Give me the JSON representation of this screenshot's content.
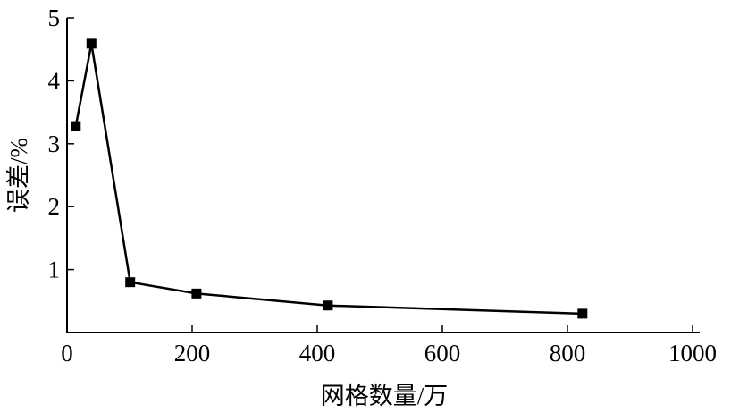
{
  "chart_data": {
    "type": "line",
    "xlabel": "网格数量/万",
    "ylabel": "误差/%",
    "xlim": [
      0,
      1000
    ],
    "ylim": [
      0,
      5
    ],
    "xticks": [
      "0",
      "200",
      "400",
      "600",
      "800",
      "1000"
    ],
    "yticks": [
      "1",
      "2",
      "3",
      "4",
      "5"
    ],
    "grid": false,
    "marker": "square",
    "color": "#000000",
    "series": [
      {
        "x": [
          14,
          39,
          101,
          207,
          417,
          824
        ],
        "y": [
          3.28,
          4.59,
          0.8,
          0.62,
          0.43,
          0.3
        ]
      }
    ]
  }
}
